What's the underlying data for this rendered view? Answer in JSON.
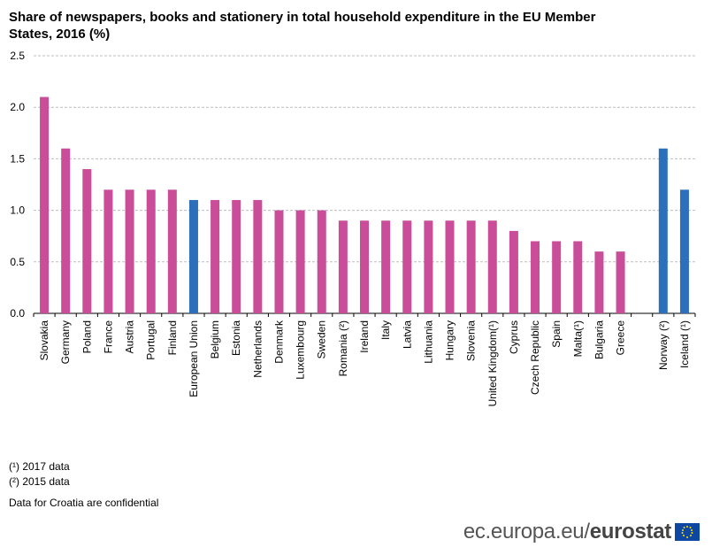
{
  "title": "Share of newspapers, books and stationery in total household expenditure in the EU Member States, 2016 (%)",
  "chart_data": {
    "type": "bar",
    "title": "Share of newspapers, books and stationery in total household expenditure in the EU Member States, 2016 (%)",
    "xlabel": "",
    "ylabel": "",
    "ylim": [
      0,
      2.5
    ],
    "yticks": [
      "0.0",
      "0.5",
      "1.0",
      "1.5",
      "2.0",
      "2.5"
    ],
    "grid": true,
    "colors": {
      "member": "#c94d98",
      "highlight": "#2c6fbb"
    },
    "categories": [
      "Slovakia",
      "Germany",
      "Poland",
      "France",
      "Austria",
      "Portugal",
      "Finland",
      "European Union",
      "Belgium",
      "Estonia",
      "Netherlands",
      "Denmark",
      "Luxembourg",
      "Sweden",
      "Romania (²)",
      "Ireland",
      "Italy",
      "Latvia",
      "Lithuania",
      "Hungary",
      "Slovenia",
      "United Kingdom(¹)",
      "Cyprus",
      "Czech Republic",
      "Spain",
      "Malta(¹)",
      "Bulgaria",
      "Greece",
      "",
      "Norway (²)",
      "Iceland (¹)"
    ],
    "values": [
      2.1,
      1.6,
      1.4,
      1.2,
      1.2,
      1.2,
      1.2,
      1.1,
      1.1,
      1.1,
      1.1,
      1.0,
      1.0,
      1.0,
      0.9,
      0.9,
      0.9,
      0.9,
      0.9,
      0.9,
      0.9,
      0.9,
      0.8,
      0.7,
      0.7,
      0.7,
      0.6,
      0.6,
      null,
      1.6,
      1.2
    ],
    "highlight": [
      "European Union",
      "Norway (²)",
      "Iceland (¹)"
    ]
  },
  "notes": {
    "n1": "(¹) 2017 data",
    "n2": "(²) 2015 data",
    "n3": "Data for Croatia are confidential"
  },
  "footer": {
    "site": "ec.europa.eu/",
    "brand": "eurostat"
  }
}
